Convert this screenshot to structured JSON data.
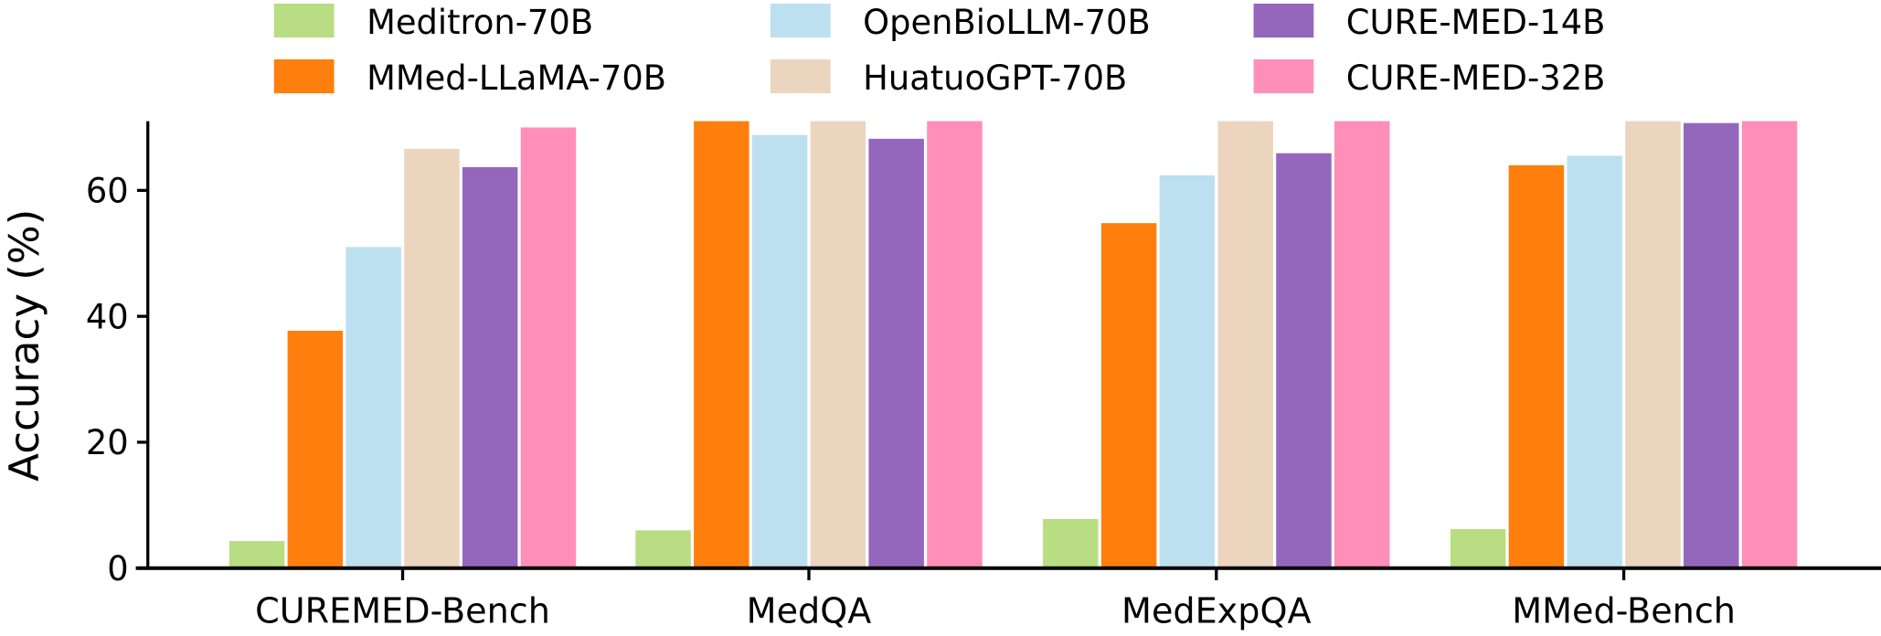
{
  "chart_data": {
    "type": "bar",
    "title": "",
    "xlabel": "",
    "ylabel": "Accuracy (%)",
    "ylim": [
      0,
      71
    ],
    "yticks": [
      0,
      20,
      40,
      60
    ],
    "grid": false,
    "legend_placement": "top",
    "categories": [
      "CUREMED-Bench",
      "MedQA",
      "MedExpQA",
      "MMed-Bench"
    ],
    "series": [
      {
        "name": "Meditron-70B",
        "color": "#b9dd82",
        "values": [
          4.3,
          6.0,
          7.8,
          6.2
        ]
      },
      {
        "name": "MMed-LLaMA-70B",
        "color": "#ff7f0e",
        "values": [
          37.7,
          71.0,
          54.8,
          64.0
        ]
      },
      {
        "name": "OpenBioLLM-70B",
        "color": "#bce0f0",
        "values": [
          51.0,
          68.8,
          62.4,
          65.5
        ]
      },
      {
        "name": "HuatuoGPT-70B",
        "color": "#ecd5bf",
        "values": [
          66.6,
          71.0,
          71.0,
          71.0
        ]
      },
      {
        "name": "CURE-MED-14B",
        "color": "#9467bd",
        "values": [
          63.7,
          68.2,
          65.9,
          70.7
        ]
      },
      {
        "name": "CURE-MED-32B",
        "color": "#ff8fb8",
        "values": [
          70.0,
          71.0,
          71.0,
          71.0
        ]
      }
    ]
  }
}
